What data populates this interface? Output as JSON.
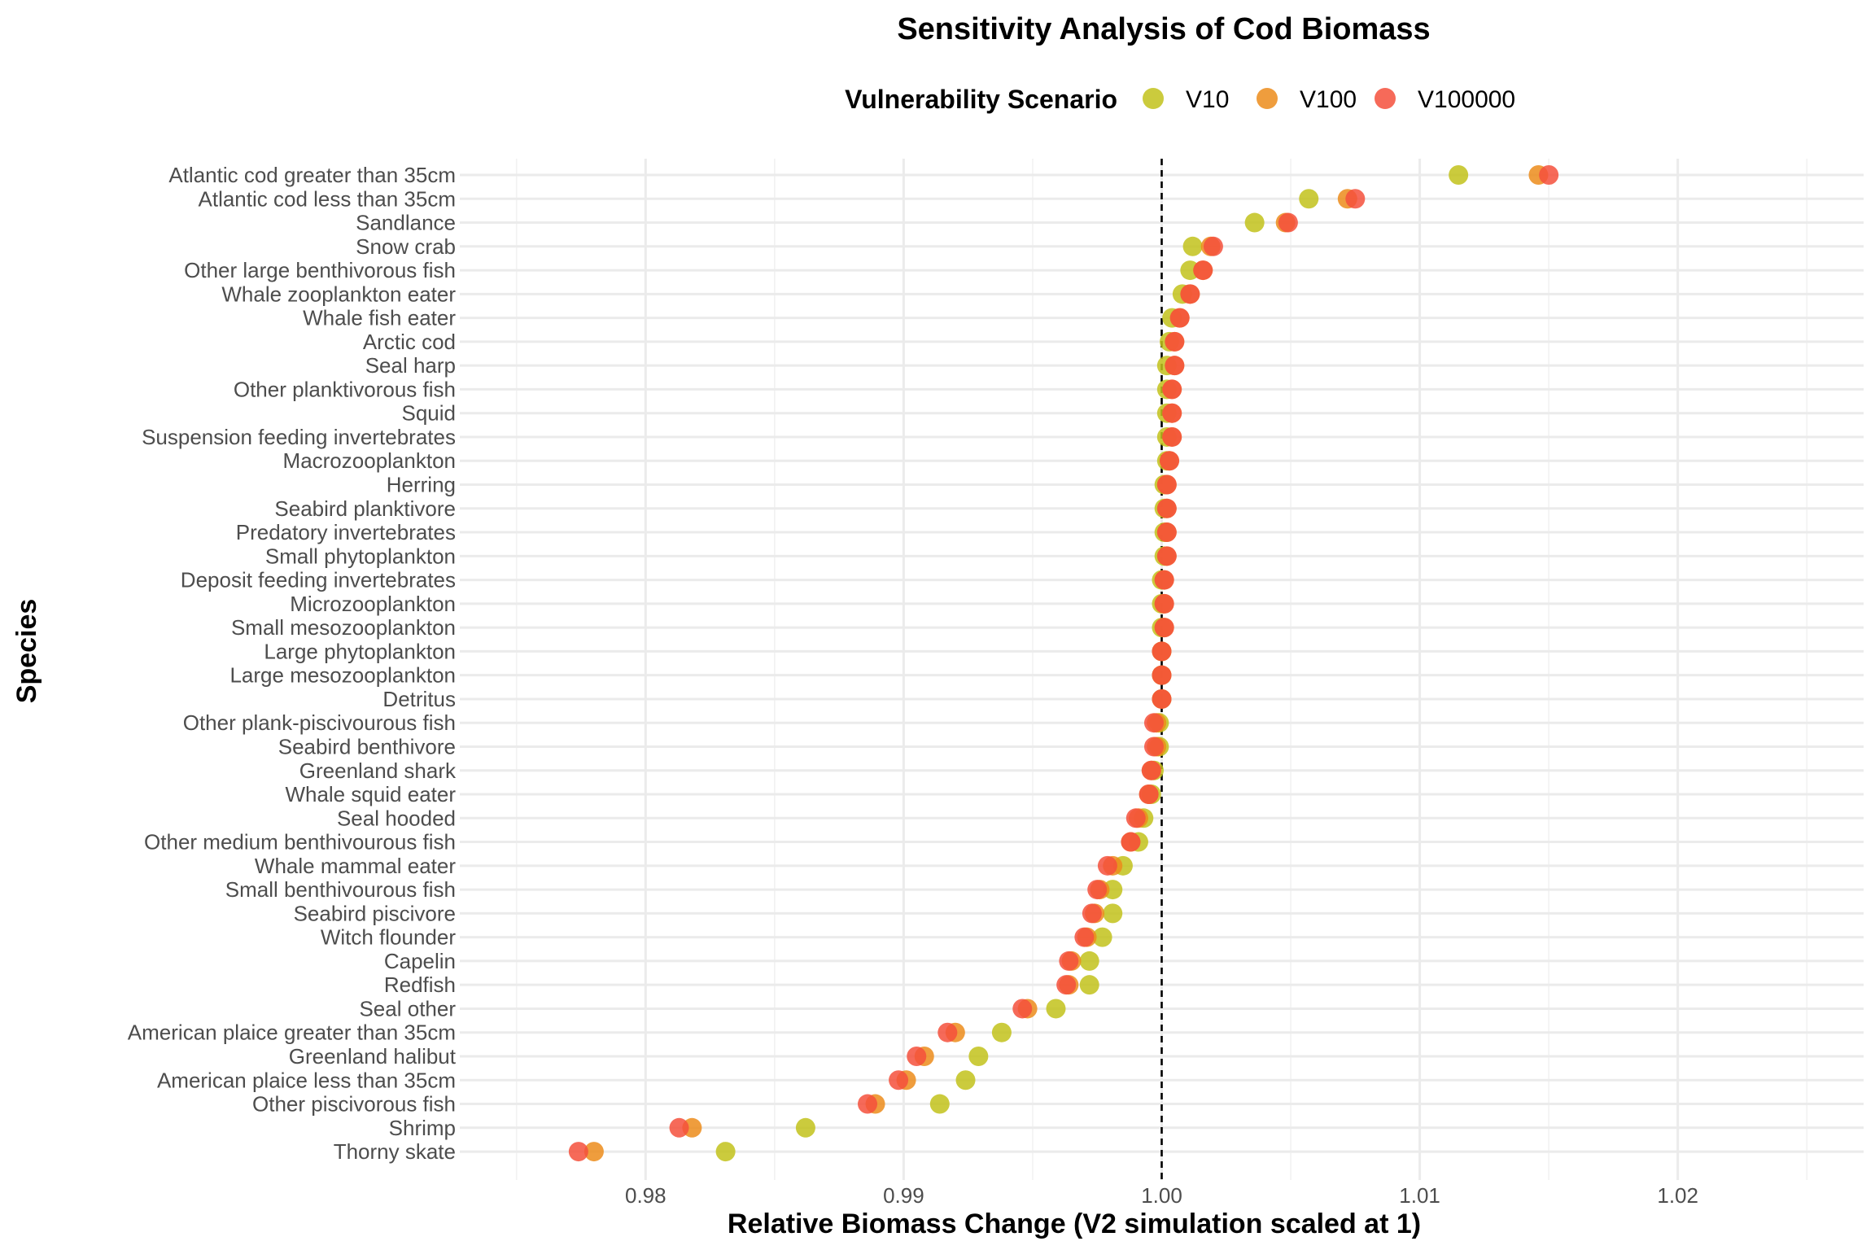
{
  "chart_data": {
    "type": "scatter",
    "title": "Sensitivity Analysis of Cod Biomass",
    "xlabel": "Relative Biomass Change (V2 simulation scaled at 1)",
    "ylabel": "Species",
    "xlim": [
      0.9728,
      1.0272
    ],
    "xticks": [
      0.98,
      0.99,
      1.0,
      1.01,
      1.02
    ],
    "xtick_labels": [
      "0.98",
      "0.99",
      "1.00",
      "1.01",
      "1.02"
    ],
    "reference_line": {
      "x": 1.0,
      "style": "dashed"
    },
    "grid": true,
    "legend": {
      "title": "Vulnerability Scenario",
      "position": "top"
    },
    "categories": [
      "Atlantic cod greater than 35cm",
      "Atlantic cod less than 35cm",
      "Sandlance",
      "Snow crab",
      "Other large benthivorous fish",
      "Whale zooplankton eater",
      "Whale fish eater",
      "Arctic cod",
      "Seal harp",
      "Other planktivorous fish",
      "Squid",
      "Suspension feeding invertebrates",
      "Macrozooplankton",
      "Herring",
      "Seabird planktivore",
      "Predatory invertebrates",
      "Small phytoplankton",
      "Deposit feeding invertebrates",
      "Microzooplankton",
      "Small mesozooplankton",
      "Large phytoplankton",
      "Large mesozooplankton",
      "Detritus",
      "Other plank-piscivourous fish",
      "Seabird benthivore",
      "Greenland shark",
      "Whale squid eater",
      "Seal hooded",
      "Other medium benthivourous fish",
      "Whale mammal eater",
      "Small benthivourous fish",
      "Seabird piscivore",
      "Witch flounder",
      "Capelin",
      "Redfish",
      "Seal other",
      "American plaice greater than 35cm",
      "Greenland halibut",
      "American plaice less than 35cm",
      "Other piscivorous fish",
      "Shrimp",
      "Thorny skate"
    ],
    "series": [
      {
        "name": "V10",
        "color": "#c2c21b",
        "values": [
          1.0115,
          1.0057,
          1.0036,
          1.0012,
          1.0011,
          1.0008,
          1.0004,
          1.0003,
          1.0002,
          1.0002,
          1.0002,
          1.0002,
          1.0002,
          1.0001,
          1.0001,
          1.0001,
          1.0001,
          1.0,
          1.0,
          1.0,
          1.0,
          1.0,
          1.0,
          0.9999,
          0.9999,
          0.9997,
          0.9996,
          0.9993,
          0.9991,
          0.9985,
          0.9981,
          0.9981,
          0.9977,
          0.9972,
          0.9972,
          0.9959,
          0.9938,
          0.9929,
          0.9924,
          0.9914,
          0.9862,
          0.9831
        ]
      },
      {
        "name": "V100",
        "color": "#ec8c1b",
        "values": [
          1.0146,
          1.0072,
          1.0048,
          1.0019,
          1.0016,
          1.0011,
          1.0007,
          1.0005,
          1.0005,
          1.0004,
          1.0004,
          1.0004,
          1.0003,
          1.0002,
          1.0002,
          1.0002,
          1.0002,
          1.0001,
          1.0001,
          1.0001,
          1.0,
          1.0,
          1.0,
          0.9998,
          0.9998,
          0.9996,
          0.9995,
          0.9991,
          0.9988,
          0.9981,
          0.9976,
          0.9974,
          0.9971,
          0.9965,
          0.9964,
          0.9948,
          0.992,
          0.9908,
          0.9901,
          0.9889,
          0.9818,
          0.978
        ]
      },
      {
        "name": "V100000",
        "color": "#f5503c",
        "values": [
          1.015,
          1.0075,
          1.0049,
          1.002,
          1.0016,
          1.0011,
          1.0007,
          1.0005,
          1.0005,
          1.0004,
          1.0004,
          1.0004,
          1.0003,
          1.0002,
          1.0002,
          1.0002,
          1.0002,
          1.0001,
          1.0001,
          1.0001,
          1.0,
          1.0,
          1.0,
          0.9997,
          0.9997,
          0.9996,
          0.9995,
          0.999,
          0.9988,
          0.9979,
          0.9975,
          0.9973,
          0.997,
          0.9964,
          0.9963,
          0.9946,
          0.9917,
          0.9905,
          0.9898,
          0.9886,
          0.9813,
          0.9774
        ]
      }
    ]
  }
}
